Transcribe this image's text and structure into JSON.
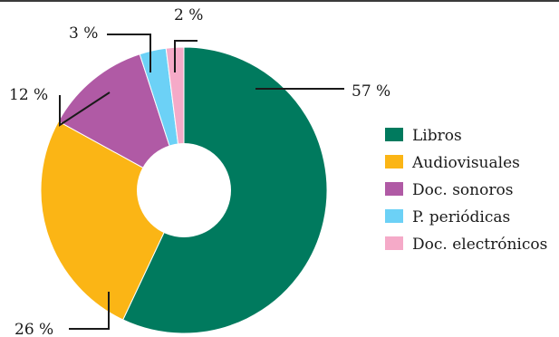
{
  "chart_data": {
    "type": "pie",
    "donut": true,
    "legend_position": "right",
    "series": [
      {
        "name": "Libros",
        "value": 57,
        "label": "57 %",
        "color": "#007a5e"
      },
      {
        "name": "Audiovisuales",
        "value": 26,
        "label": "26 %",
        "color": "#fbb515"
      },
      {
        "name": "Doc. sonoros",
        "value": 12,
        "label": "12 %",
        "color": "#b05aa5"
      },
      {
        "name": "P. periódicas",
        "value": 3,
        "label": "3 %",
        "color": "#6cd1f6"
      },
      {
        "name": "Doc. electrónicos",
        "value": 2,
        "label": "2 %",
        "color": "#f5aac8"
      }
    ]
  }
}
